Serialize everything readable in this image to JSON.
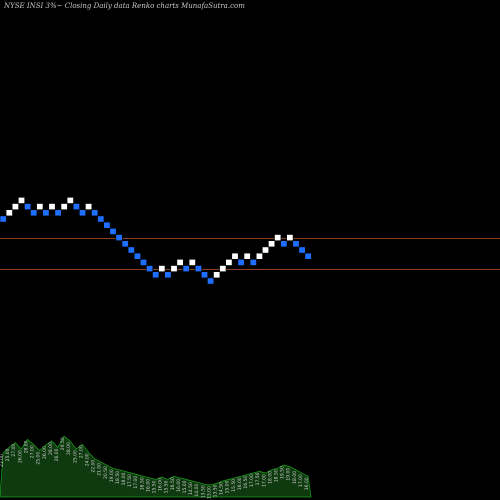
{
  "chart_data": {
    "type": "renko",
    "title": "NYSE INSI 3%~ Closing Daily data Renko charts MunafaSutra.com",
    "colors": {
      "background": "#000000",
      "up_brick": "#ffffff",
      "down_brick": "#1e6fff",
      "support_lines": "#b8562a",
      "volume_fill": "#0f3a10",
      "volume_stroke": "#1aa31a"
    },
    "brick_size_pct": 3,
    "bricks": [
      {
        "i": 0,
        "level": 0,
        "dir": "down"
      },
      {
        "i": 1,
        "level": 1,
        "dir": "up"
      },
      {
        "i": 2,
        "level": 2,
        "dir": "up"
      },
      {
        "i": 3,
        "level": 3,
        "dir": "up"
      },
      {
        "i": 4,
        "level": 2,
        "dir": "down"
      },
      {
        "i": 5,
        "level": 1,
        "dir": "down"
      },
      {
        "i": 6,
        "level": 2,
        "dir": "up"
      },
      {
        "i": 7,
        "level": 1,
        "dir": "down"
      },
      {
        "i": 8,
        "level": 2,
        "dir": "up"
      },
      {
        "i": 9,
        "level": 1,
        "dir": "down"
      },
      {
        "i": 10,
        "level": 2,
        "dir": "up"
      },
      {
        "i": 11,
        "level": 3,
        "dir": "up"
      },
      {
        "i": 12,
        "level": 2,
        "dir": "down"
      },
      {
        "i": 13,
        "level": 1,
        "dir": "down"
      },
      {
        "i": 14,
        "level": 2,
        "dir": "up"
      },
      {
        "i": 15,
        "level": 1,
        "dir": "down"
      },
      {
        "i": 16,
        "level": 0,
        "dir": "down"
      },
      {
        "i": 17,
        "level": -1,
        "dir": "down"
      },
      {
        "i": 18,
        "level": -2,
        "dir": "down"
      },
      {
        "i": 19,
        "level": -3,
        "dir": "down"
      },
      {
        "i": 20,
        "level": -4,
        "dir": "down"
      },
      {
        "i": 21,
        "level": -5,
        "dir": "down"
      },
      {
        "i": 22,
        "level": -6,
        "dir": "down"
      },
      {
        "i": 23,
        "level": -7,
        "dir": "down"
      },
      {
        "i": 24,
        "level": -8,
        "dir": "down"
      },
      {
        "i": 25,
        "level": -9,
        "dir": "down"
      },
      {
        "i": 26,
        "level": -8,
        "dir": "up"
      },
      {
        "i": 27,
        "level": -9,
        "dir": "down"
      },
      {
        "i": 28,
        "level": -8,
        "dir": "up"
      },
      {
        "i": 29,
        "level": -7,
        "dir": "up"
      },
      {
        "i": 30,
        "level": -8,
        "dir": "down"
      },
      {
        "i": 31,
        "level": -7,
        "dir": "up"
      },
      {
        "i": 32,
        "level": -8,
        "dir": "down"
      },
      {
        "i": 33,
        "level": -9,
        "dir": "down"
      },
      {
        "i": 34,
        "level": -10,
        "dir": "down"
      },
      {
        "i": 35,
        "level": -9,
        "dir": "up"
      },
      {
        "i": 36,
        "level": -8,
        "dir": "up"
      },
      {
        "i": 37,
        "level": -7,
        "dir": "up"
      },
      {
        "i": 38,
        "level": -6,
        "dir": "up"
      },
      {
        "i": 39,
        "level": -7,
        "dir": "down"
      },
      {
        "i": 40,
        "level": -6,
        "dir": "up"
      },
      {
        "i": 41,
        "level": -7,
        "dir": "down"
      },
      {
        "i": 42,
        "level": -6,
        "dir": "up"
      },
      {
        "i": 43,
        "level": -5,
        "dir": "up"
      },
      {
        "i": 44,
        "level": -4,
        "dir": "up"
      },
      {
        "i": 45,
        "level": -3,
        "dir": "up"
      },
      {
        "i": 46,
        "level": -4,
        "dir": "down"
      },
      {
        "i": 47,
        "level": -3,
        "dir": "up"
      },
      {
        "i": 48,
        "level": -4,
        "dir": "down"
      },
      {
        "i": 49,
        "level": -5,
        "dir": "down"
      },
      {
        "i": 50,
        "level": -6,
        "dir": "down"
      }
    ],
    "support_levels": [
      -2.6,
      -7.6
    ],
    "volume": {
      "values": [
        0.55,
        0.62,
        0.68,
        0.6,
        0.72,
        0.66,
        0.58,
        0.65,
        0.7,
        0.62,
        0.76,
        0.7,
        0.6,
        0.66,
        0.56,
        0.48,
        0.44,
        0.4,
        0.36,
        0.34,
        0.32,
        0.3,
        0.28,
        0.26,
        0.24,
        0.22,
        0.25,
        0.22,
        0.26,
        0.24,
        0.22,
        0.2,
        0.18,
        0.16,
        0.15,
        0.17,
        0.2,
        0.22,
        0.24,
        0.26,
        0.28,
        0.3,
        0.32,
        0.3,
        0.34,
        0.36,
        0.4,
        0.38,
        0.34,
        0.3,
        0.26
      ],
      "labels": [
        "23.00",
        "25.00",
        "27.00",
        "26.00",
        "28.00",
        "27.00",
        "25.00",
        "26.00",
        "28.00",
        "26.00",
        "29.50",
        "28.00",
        "25.00",
        "27.00",
        "24.00",
        "22.00",
        "21.00",
        "20.50",
        "19.00",
        "18.50",
        "18.00",
        "17.50",
        "17.00",
        "16.50",
        "16.00",
        "15.50",
        "16.00",
        "15.50",
        "16.50",
        "16.00",
        "15.00",
        "14.50",
        "14.00",
        "13.50",
        "13.00",
        "13.50",
        "14.50",
        "15.00",
        "15.50",
        "16.00",
        "16.50",
        "17.00",
        "17.50",
        "17.00",
        "18.00",
        "18.50",
        "19.50",
        "19.00",
        "18.00",
        "17.00",
        "16.00"
      ]
    }
  }
}
